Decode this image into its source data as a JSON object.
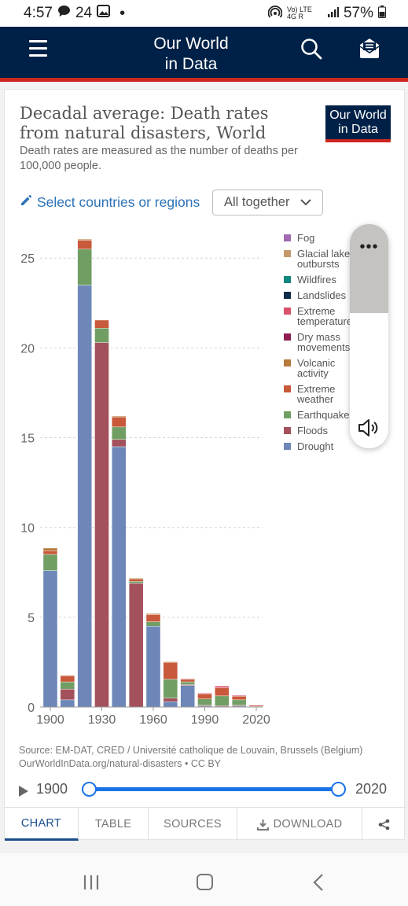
{
  "status_bar": {
    "time": "4:57",
    "notif_count": "24",
    "signal_text": "Vo) LTE 4G R",
    "battery": "57%"
  },
  "header": {
    "logo_line1": "Our World",
    "logo_line2": "in Data"
  },
  "card": {
    "owid_badge_line1": "Our World",
    "owid_badge_line2": "in Data",
    "select_countries_label": "Select countries or regions",
    "dropdown_value": "All together",
    "source_line1": "Source: EM-DAT, CRED / Université catholique de Louvain, Brussels (Belgium)",
    "source_line2": "OurWorldInData.org/natural-disasters • CC BY"
  },
  "timeline": {
    "start": "1900",
    "end": "2020"
  },
  "tabs": {
    "chart": "CHART",
    "table": "TABLE",
    "sources": "SOURCES",
    "download": "DOWNLOAD"
  },
  "chart_data": {
    "type": "bar",
    "stacked": true,
    "title": "Decadal average: Death rates from natural disasters, World",
    "subtitle": "Death rates are measured as the number of deaths per 100,000 people.",
    "xlabel": "",
    "ylabel": "",
    "x": [
      1900,
      1910,
      1920,
      1930,
      1940,
      1950,
      1960,
      1970,
      1980,
      1990,
      2000,
      2010,
      2020
    ],
    "x_ticks": [
      1900,
      1930,
      1960,
      1990,
      2020
    ],
    "y_ticks": [
      0,
      5,
      10,
      15,
      20,
      25
    ],
    "ylim": [
      0,
      26.5
    ],
    "grid": "horizontal dashed",
    "legend_position": "right",
    "series": [
      {
        "name": "Drought",
        "color": "#6d87b8",
        "values": [
          7.6,
          0.4,
          23.5,
          0.0,
          14.5,
          0.0,
          4.5,
          0.3,
          1.2,
          0.05,
          0.02,
          0.05,
          0.0
        ]
      },
      {
        "name": "Floods",
        "color": "#a3515c",
        "values": [
          0.0,
          0.6,
          0.0,
          20.3,
          0.4,
          6.9,
          0.0,
          0.2,
          0.05,
          0.05,
          0.05,
          0.05,
          0.0
        ]
      },
      {
        "name": "Earthquakes",
        "color": "#709e63",
        "values": [
          0.9,
          0.4,
          2.0,
          0.8,
          0.7,
          0.1,
          0.25,
          1.05,
          0.15,
          0.35,
          0.55,
          0.3,
          0.03
        ]
      },
      {
        "name": "Extreme weather",
        "color": "#c8593a",
        "values": [
          0.2,
          0.35,
          0.5,
          0.45,
          0.55,
          0.15,
          0.4,
          0.95,
          0.15,
          0.3,
          0.45,
          0.2,
          0.07
        ]
      },
      {
        "name": "Volcanic activity",
        "color": "#b57a3c",
        "values": [
          0.15,
          0.02,
          0.05,
          0.0,
          0.05,
          0.02,
          0.05,
          0.02,
          0.02,
          0.0,
          0.0,
          0.0,
          0.0
        ]
      },
      {
        "name": "Dry mass movements",
        "color": "#8f1e4f",
        "values": [
          0.0,
          0.0,
          0.0,
          0.0,
          0.0,
          0.0,
          0.0,
          0.0,
          0.0,
          0.0,
          0.0,
          0.0,
          0.0
        ]
      },
      {
        "name": "Extreme temperature",
        "color": "#d9506a",
        "values": [
          0.0,
          0.0,
          0.0,
          0.0,
          0.0,
          0.0,
          0.0,
          0.0,
          0.02,
          0.02,
          0.1,
          0.05,
          0.0
        ]
      },
      {
        "name": "Landslides",
        "color": "#102b4a",
        "values": [
          0.0,
          0.0,
          0.0,
          0.0,
          0.0,
          0.0,
          0.0,
          0.0,
          0.0,
          0.0,
          0.0,
          0.0,
          0.0
        ]
      },
      {
        "name": "Wildfires",
        "color": "#12877d",
        "values": [
          0.0,
          0.0,
          0.0,
          0.0,
          0.0,
          0.0,
          0.0,
          0.0,
          0.0,
          0.0,
          0.0,
          0.0,
          0.0
        ]
      },
      {
        "name": "Glacial lake outbursts",
        "color": "#c49a6c",
        "values": [
          0.0,
          0.0,
          0.0,
          0.0,
          0.0,
          0.0,
          0.0,
          0.0,
          0.0,
          0.0,
          0.0,
          0.0,
          0.0
        ]
      },
      {
        "name": "Fog",
        "color": "#a06ab2",
        "values": [
          0.0,
          0.0,
          0.0,
          0.0,
          0.0,
          0.0,
          0.0,
          0.0,
          0.0,
          0.0,
          0.0,
          0.0,
          0.0
        ]
      }
    ],
    "legend_order": [
      "Fog",
      "Glacial lake outbursts",
      "Wildfires",
      "Landslides",
      "Extreme temperature",
      "Dry mass movements",
      "Volcanic activity",
      "Extreme weather",
      "Earthquakes",
      "Floods",
      "Drought"
    ]
  }
}
